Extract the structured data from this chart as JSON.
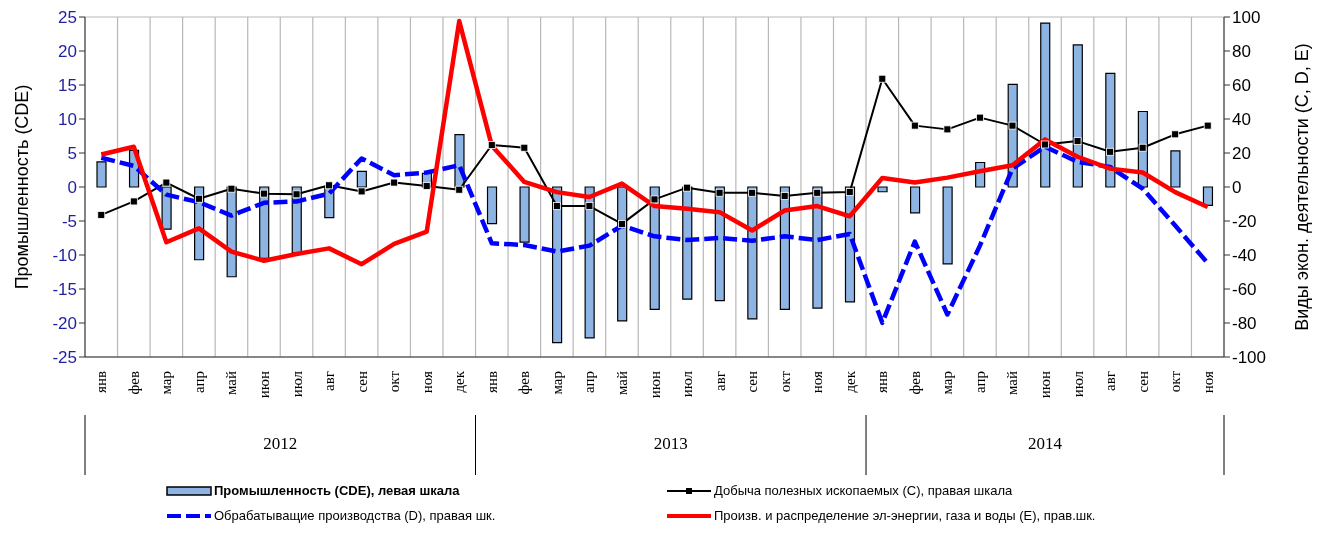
{
  "chart_data": {
    "type": "bar",
    "ylabel": "Промышленность (CDE)",
    "y2label": "Виды экон. деятельности (С, D, E)",
    "categories": [
      "янв",
      "фев",
      "мар",
      "апр",
      "май",
      "июн",
      "июл",
      "авг",
      "сен",
      "окт",
      "ноя",
      "дек",
      "янв",
      "фев",
      "мар",
      "апр",
      "май",
      "июн",
      "июл",
      "авг",
      "сен",
      "окт",
      "ноя",
      "дек",
      "янв",
      "фев",
      "мар",
      "апр",
      "май",
      "июн",
      "июл",
      "авг",
      "сен",
      "окт",
      "ноя"
    ],
    "annotations": [
      "2012",
      "2013",
      "2014"
    ],
    "series": [
      {
        "name": "Промышленность (CDE), левая шкала",
        "color": "#8db4e2",
        "values": [
          3.7,
          5.4,
          -6.2,
          -10.7,
          -13.2,
          -10.5,
          -9.7,
          -4.5,
          2.3,
          null,
          2,
          7.7,
          -5.4,
          -8.1,
          -22.9,
          -22.2,
          -19.7,
          -18,
          -16.5,
          -16.7,
          -19.4,
          -18,
          -17.8,
          -16.9,
          -0.7,
          -3.8,
          -11.3,
          3.6,
          15.1,
          24.1,
          20.9,
          16.7,
          11.1,
          5.3,
          -2.7
        ]
      },
      {
        "name": "Добыча полезных ископаемых (С), правая шкала",
        "type": "line",
        "axis": "y2",
        "color": "#000000",
        "marker": "square",
        "line_style": "solid",
        "values": [
          -16.4,
          -8.5,
          2.6,
          -6.9,
          -1,
          -3.9,
          -4.3,
          1,
          -2.6,
          2.6,
          0.6,
          -1.6,
          24.7,
          23.1,
          -11.2,
          -11.2,
          -21.7,
          -7.3,
          -0.4,
          -3.4,
          -3.4,
          -5.3,
          -3.4,
          -3,
          63.7,
          36.1,
          33.9,
          40.8,
          36.1,
          25,
          27,
          20.7,
          23.1,
          31,
          36.1
        ]
      },
      {
        "name": "Обрабатыващие производства (D), правая шк.",
        "type": "line",
        "axis": "y2",
        "color": "#0000ff",
        "marker": "none",
        "line_style": "dashed",
        "values": [
          17.2,
          12.4,
          -4.5,
          -8.9,
          -16.8,
          -9.3,
          -8.5,
          -3.9,
          16.8,
          6.9,
          8.5,
          12.8,
          -33.1,
          -34.1,
          -38,
          -34.5,
          -22.7,
          -29,
          -31.2,
          -30,
          -31.6,
          -29,
          -31.2,
          -27.6,
          -79.9,
          -32.1,
          -75,
          -34.5,
          10.8,
          23.7,
          14.8,
          11.8,
          -1,
          -22.7,
          -44.8
        ]
      },
      {
        "name": "Произв.  и распределение эл-энергии, газа и воды (E), прав.шк.",
        "type": "line",
        "axis": "y2",
        "color": "#ff0000",
        "marker": "none",
        "line_style": "solid",
        "values": [
          19.1,
          23.7,
          -32.5,
          -24.3,
          -38,
          -43.4,
          -39.4,
          -36.1,
          -45.4,
          -33.5,
          -26.2,
          97.6,
          24.3,
          3,
          -3,
          -5.9,
          2,
          -11.2,
          -12.8,
          -14.8,
          -25.6,
          -13.8,
          -11.2,
          -17.2,
          5.3,
          2.6,
          5.5,
          9.3,
          12.8,
          28,
          17.8,
          10.8,
          8.5,
          -3,
          -11.8
        ]
      }
    ],
    "ylim": [
      -25,
      25
    ],
    "yticks": [
      -25,
      -20,
      -15,
      -10,
      -5,
      0,
      5,
      10,
      15,
      20,
      25
    ],
    "y2lim": [
      -100,
      100
    ],
    "y2ticks": [
      -100,
      -80,
      -60,
      -40,
      -20,
      0,
      20,
      40,
      60,
      80,
      100
    ],
    "grid": true,
    "legend": "bottom"
  }
}
